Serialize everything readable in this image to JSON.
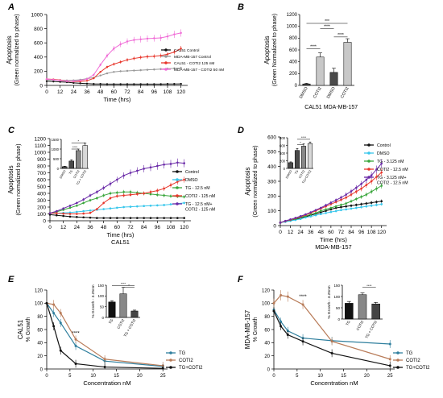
{
  "panel_letters": [
    "A",
    "B",
    "C",
    "D",
    "E",
    "F"
  ],
  "colors": {
    "black": "#111111",
    "grey": "#9a9a9a",
    "red": "#e8372c",
    "pink": "#f06ad6",
    "cyan": "#38c7ec",
    "green": "#3aa63c",
    "purple": "#6a2aa8",
    "teal": "#2f7f9e",
    "brown": "#b87b58",
    "bar_dark": "#4a4a4a",
    "bar_light": "#c8c8c8"
  },
  "chart_data": [
    {
      "panel": "A",
      "type": "line",
      "ylabel": [
        "Apoptosis",
        "(Green normalized to phase)"
      ],
      "xlabel": "Time (hrs)",
      "xticks": [
        0,
        12,
        24,
        36,
        48,
        60,
        72,
        84,
        96,
        108,
        120
      ],
      "yticks": [
        0,
        200,
        400,
        600,
        800,
        1000
      ],
      "xlim": [
        0,
        126
      ],
      "ylim": [
        0,
        1000
      ],
      "series": [
        {
          "name": "CAL51 Control",
          "color": "black",
          "x": [
            0,
            6,
            12,
            18,
            24,
            30,
            36,
            42,
            48,
            54,
            60,
            66,
            72,
            78,
            84,
            90,
            96,
            102,
            108,
            114,
            120
          ],
          "y": [
            60,
            55,
            50,
            45,
            35,
            30,
            25,
            20,
            20,
            18,
            18,
            18,
            18,
            18,
            18,
            18,
            18,
            18,
            20,
            20,
            22
          ]
        },
        {
          "name": "MDA-MB-157 Control",
          "color": "grey",
          "x": [
            0,
            6,
            12,
            18,
            24,
            30,
            36,
            42,
            48,
            54,
            60,
            66,
            72,
            78,
            84,
            90,
            96,
            102,
            108,
            114,
            120
          ],
          "y": [
            80,
            78,
            75,
            70,
            72,
            80,
            95,
            110,
            140,
            170,
            190,
            200,
            205,
            210,
            215,
            220,
            225,
            230,
            235,
            240,
            245
          ]
        },
        {
          "name": "CAL51 - COTI2 125 nM",
          "color": "red",
          "x": [
            0,
            6,
            12,
            18,
            24,
            30,
            36,
            42,
            48,
            54,
            60,
            66,
            72,
            78,
            84,
            90,
            96,
            102,
            108,
            114,
            120
          ],
          "y": [
            90,
            85,
            75,
            60,
            55,
            55,
            65,
            100,
            190,
            260,
            300,
            330,
            360,
            380,
            395,
            405,
            410,
            420,
            440,
            470,
            520
          ]
        },
        {
          "name": "MDA-MB-157 - COTI2 50 nM",
          "color": "pink",
          "x": [
            0,
            6,
            12,
            18,
            24,
            30,
            36,
            42,
            48,
            54,
            60,
            66,
            72,
            78,
            84,
            90,
            96,
            102,
            108,
            114,
            120
          ],
          "y": [
            90,
            80,
            70,
            60,
            60,
            70,
            90,
            150,
            290,
            420,
            520,
            580,
            620,
            640,
            650,
            660,
            665,
            670,
            690,
            720,
            740
          ]
        }
      ]
    },
    {
      "panel": "B",
      "type": "bar",
      "ylabel": [
        "Apoptosis",
        "(Green Normalized to phase)"
      ],
      "categories": [
        "DMSO",
        "COTI2",
        "DMSO",
        "COTI2"
      ],
      "groups": [
        "CAL51",
        "MDA-MB-157"
      ],
      "values": [
        25,
        480,
        220,
        730
      ],
      "errors": [
        10,
        70,
        70,
        60
      ],
      "yticks": [
        0,
        200,
        400,
        600,
        800,
        1000,
        1200
      ],
      "ylim": [
        0,
        1200
      ],
      "significance": [
        "****",
        "****",
        "****",
        "***"
      ]
    },
    {
      "panel": "C",
      "type": "line",
      "ylabel": [
        "Apoptosis",
        "(Green normalized to phase)"
      ],
      "xlabel": "Time (hrs)",
      "subtitle": "CAL51",
      "xticks": [
        0,
        12,
        24,
        36,
        48,
        60,
        72,
        84,
        96,
        108,
        120
      ],
      "yticks": [
        0,
        100,
        200,
        300,
        400,
        500,
        600,
        700,
        800,
        900,
        1000,
        1100,
        1200
      ],
      "xlim": [
        0,
        126
      ],
      "ylim": [
        0,
        1200
      ],
      "series": [
        {
          "name": "Control",
          "color": "black",
          "x": [
            0,
            6,
            12,
            18,
            24,
            30,
            36,
            42,
            48,
            54,
            60,
            66,
            72,
            78,
            84,
            90,
            96,
            102,
            108,
            114,
            120
          ],
          "y": [
            90,
            80,
            70,
            60,
            55,
            50,
            45,
            40,
            40,
            40,
            40,
            40,
            40,
            40,
            40,
            40,
            40,
            40,
            40,
            40,
            40
          ]
        },
        {
          "name": "DMSO",
          "color": "cyan",
          "x": [
            0,
            6,
            12,
            18,
            24,
            30,
            36,
            42,
            48,
            54,
            60,
            66,
            72,
            78,
            84,
            90,
            96,
            102,
            108,
            114,
            120
          ],
          "y": [
            110,
            110,
            115,
            120,
            130,
            140,
            150,
            160,
            170,
            180,
            190,
            200,
            205,
            210,
            215,
            220,
            225,
            230,
            240,
            250,
            260
          ]
        },
        {
          "name": "TG - 12.5 nM",
          "color": "green",
          "x": [
            0,
            6,
            12,
            18,
            24,
            30,
            36,
            42,
            48,
            54,
            60,
            66,
            72,
            78,
            84,
            90,
            96,
            102,
            108,
            114,
            120
          ],
          "y": [
            110,
            130,
            160,
            190,
            220,
            260,
            300,
            330,
            370,
            400,
            410,
            420,
            420,
            410,
            400,
            390,
            380,
            370,
            360,
            355,
            350
          ]
        },
        {
          "name": "COTI2 - 125 nM",
          "color": "red",
          "x": [
            0,
            6,
            12,
            18,
            24,
            30,
            36,
            42,
            48,
            54,
            60,
            66,
            72,
            78,
            84,
            90,
            96,
            102,
            108,
            114,
            120
          ],
          "y": [
            110,
            110,
            105,
            100,
            100,
            105,
            115,
            170,
            260,
            330,
            360,
            370,
            380,
            390,
            400,
            420,
            440,
            470,
            520,
            570,
            600
          ]
        },
        {
          "name": "TG - 12.5 nM+ COTI2 - 125 nM",
          "color": "purple",
          "x": [
            0,
            6,
            12,
            18,
            24,
            30,
            36,
            42,
            48,
            54,
            60,
            66,
            72,
            78,
            84,
            90,
            96,
            102,
            108,
            114,
            120
          ],
          "y": [
            110,
            140,
            180,
            220,
            260,
            310,
            370,
            420,
            480,
            540,
            600,
            660,
            700,
            730,
            760,
            780,
            800,
            820,
            830,
            850,
            840
          ]
        }
      ]
    },
    {
      "panel": "C-inset",
      "type": "bar",
      "categories": [
        "DMSO",
        "TG",
        "COTI2",
        "TG + COTI2"
      ],
      "values": [
        90,
        380,
        920,
        1180
      ],
      "errors": [
        20,
        60,
        80,
        120
      ],
      "yticks": [
        0,
        500,
        1000,
        1500
      ],
      "ylim": [
        0,
        1500
      ],
      "significance": [
        "****",
        "*"
      ]
    },
    {
      "panel": "D",
      "type": "line",
      "ylabel": [
        "Apoptosis",
        "(Green normalized to phase)"
      ],
      "xlabel": "Time (hrs)",
      "subtitle": "MDA-MB-157",
      "xticks": [
        0,
        12,
        24,
        36,
        48,
        60,
        72,
        84,
        96,
        108,
        120
      ],
      "yticks": [
        0,
        100,
        200,
        300,
        400,
        500,
        600
      ],
      "xlim": [
        0,
        126
      ],
      "ylim": [
        0,
        600
      ],
      "series": [
        {
          "name": "Control",
          "color": "black",
          "x": [
            0,
            6,
            12,
            18,
            24,
            30,
            36,
            42,
            48,
            54,
            60,
            66,
            72,
            78,
            84,
            90,
            96,
            102,
            108,
            114,
            120
          ],
          "y": [
            20,
            28,
            35,
            40,
            50,
            60,
            70,
            80,
            90,
            100,
            110,
            120,
            125,
            130,
            135,
            140,
            145,
            150,
            155,
            160,
            165
          ]
        },
        {
          "name": "DMSO",
          "color": "cyan",
          "x": [
            0,
            6,
            12,
            18,
            24,
            30,
            36,
            42,
            48,
            54,
            60,
            66,
            72,
            78,
            84,
            90,
            96,
            102,
            108,
            114,
            120
          ],
          "y": [
            20,
            25,
            32,
            38,
            45,
            55,
            62,
            70,
            78,
            85,
            92,
            98,
            105,
            110,
            115,
            120,
            125,
            130,
            135,
            140,
            145
          ]
        },
        {
          "name": "TG - 3.125 nM",
          "color": "green",
          "x": [
            0,
            6,
            12,
            18,
            24,
            30,
            36,
            42,
            48,
            54,
            60,
            66,
            72,
            78,
            84,
            90,
            96,
            102,
            108,
            114,
            120
          ],
          "y": [
            20,
            30,
            38,
            45,
            55,
            65,
            75,
            85,
            100,
            110,
            120,
            130,
            140,
            150,
            165,
            180,
            195,
            210,
            230,
            250,
            270
          ]
        },
        {
          "name": "COTI2 - 12.5 nM",
          "color": "red",
          "x": [
            0,
            6,
            12,
            18,
            24,
            30,
            36,
            42,
            48,
            54,
            60,
            66,
            72,
            78,
            84,
            90,
            96,
            102,
            108,
            114,
            120
          ],
          "y": [
            20,
            30,
            40,
            50,
            60,
            72,
            85,
            100,
            115,
            130,
            145,
            160,
            175,
            190,
            210,
            230,
            250,
            275,
            300,
            330,
            360
          ]
        },
        {
          "name": "TG - 3.125 nM+ COTI2 - 12.5 nM",
          "color": "purple",
          "x": [
            0,
            6,
            12,
            18,
            24,
            30,
            36,
            42,
            48,
            54,
            60,
            66,
            72,
            78,
            84,
            90,
            96,
            102,
            108,
            114,
            120
          ],
          "y": [
            20,
            32,
            42,
            52,
            64,
            76,
            90,
            105,
            120,
            138,
            155,
            172,
            190,
            210,
            232,
            256,
            282,
            310,
            340,
            380,
            420
          ]
        }
      ]
    },
    {
      "panel": "D-inset",
      "type": "bar",
      "categories": [
        "DMSO",
        "TG",
        "COTI2",
        "TG+COTI2"
      ],
      "values": [
        150,
        470,
        580,
        650
      ],
      "errors": [
        20,
        50,
        60,
        40
      ],
      "yticks": [
        0,
        200,
        400,
        600,
        800
      ],
      "ylim": [
        0,
        800
      ],
      "significance": [
        "*",
        "****"
      ]
    },
    {
      "panel": "E",
      "type": "line",
      "ylabel": [
        "CAL51",
        "% Growth"
      ],
      "xlabel": "Concentration nM",
      "xticks": [
        0,
        5,
        10,
        15,
        20,
        25
      ],
      "yticks": [
        0,
        20,
        40,
        60,
        80,
        100,
        120
      ],
      "xlim": [
        0,
        26
      ],
      "ylim": [
        0,
        120
      ],
      "significance": "****",
      "series": [
        {
          "name": "TG",
          "color": "teal",
          "x": [
            0,
            1.5,
            3,
            6.25,
            12.5,
            25
          ],
          "y": [
            100,
            85,
            70,
            35,
            12,
            4
          ]
        },
        {
          "name": "COTI2",
          "color": "brown",
          "x": [
            0,
            1.5,
            3,
            6.25,
            12.5,
            25
          ],
          "y": [
            100,
            98,
            85,
            45,
            15,
            5
          ]
        },
        {
          "name": "TG+COTI2",
          "color": "black",
          "x": [
            0,
            1.5,
            3,
            6.25,
            12.5,
            25
          ],
          "y": [
            100,
            65,
            28,
            8,
            3,
            1
          ]
        }
      ]
    },
    {
      "panel": "E-inset",
      "type": "bar",
      "ylabel": "% Growth - 3.25nm",
      "categories": [
        "TG",
        "COTI2",
        "TG + COTI2"
      ],
      "values": [
        72,
        110,
        30
      ],
      "errors": [
        6,
        30,
        4
      ],
      "yticks": [
        0,
        50,
        100,
        150
      ],
      "ylim": [
        0,
        150
      ],
      "significance": [
        "*",
        "****"
      ]
    },
    {
      "panel": "F",
      "type": "line",
      "ylabel": [
        "MDA-MB-157",
        "% Growth"
      ],
      "xlabel": "Concentration nM",
      "xticks": [
        0,
        5,
        10,
        15,
        20,
        25
      ],
      "yticks": [
        0,
        20,
        40,
        60,
        80,
        100,
        120
      ],
      "xlim": [
        0,
        26
      ],
      "ylim": [
        0,
        120
      ],
      "significance": "****",
      "series": [
        {
          "name": "TG",
          "color": "teal",
          "x": [
            0,
            1.5,
            3,
            6.25,
            12.5,
            25
          ],
          "y": [
            90,
            72,
            58,
            47,
            43,
            38
          ]
        },
        {
          "name": "COTI2",
          "color": "brown",
          "x": [
            0,
            1.5,
            3,
            6.25,
            12.5,
            25
          ],
          "y": [
            100,
            112,
            110,
            98,
            42,
            15
          ]
        },
        {
          "name": "TG+COTI2",
          "color": "black",
          "x": [
            0,
            1.5,
            3,
            6.25,
            12.5,
            25
          ],
          "y": [
            88,
            65,
            52,
            42,
            24,
            5
          ]
        }
      ]
    },
    {
      "panel": "F-inset",
      "type": "bar",
      "ylabel": "% Growth - 3.25nm",
      "categories": [
        "TG",
        "COTI2",
        "TG + COTI2"
      ],
      "values": [
        70,
        108,
        67
      ],
      "errors": [
        8,
        8,
        7
      ],
      "yticks": [
        0,
        50,
        100,
        150
      ],
      "ylim": [
        0,
        150
      ],
      "significance": [
        "****"
      ]
    }
  ]
}
